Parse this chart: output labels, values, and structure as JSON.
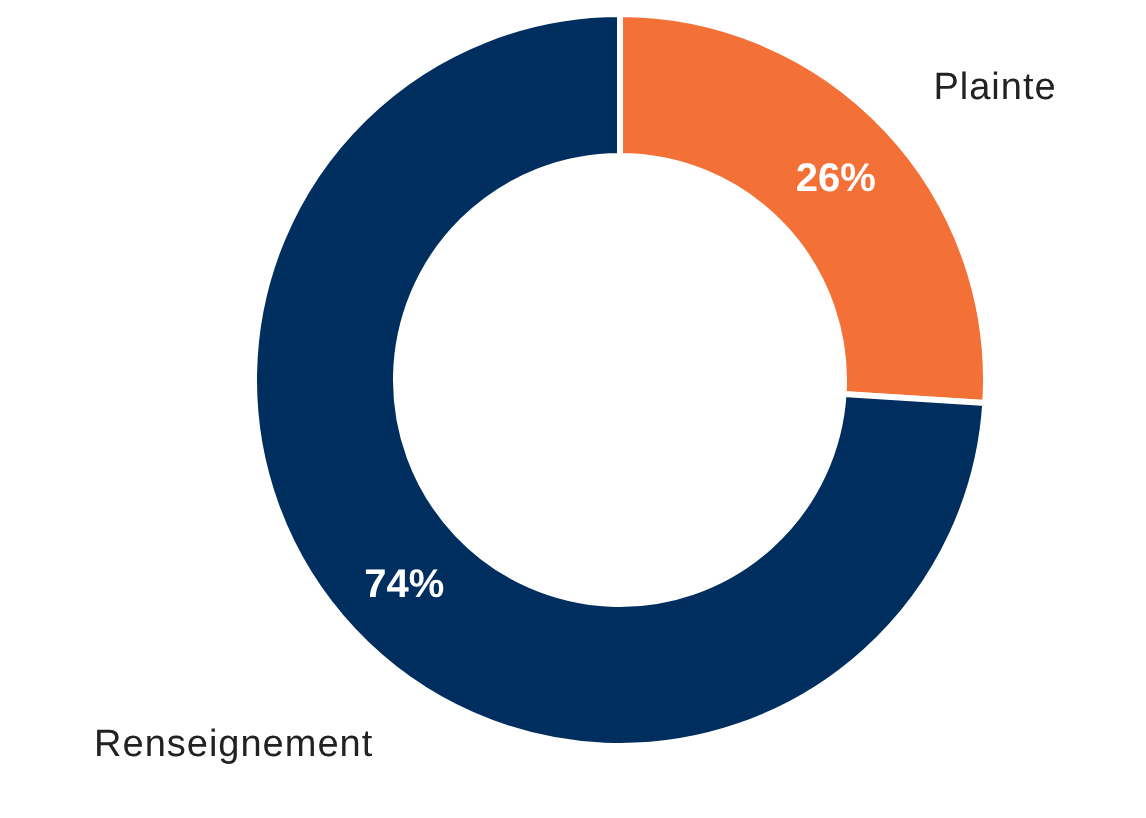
{
  "chart_data": {
    "type": "donut",
    "categories": [
      "Plainte",
      "Renseignement"
    ],
    "values": [
      26,
      74
    ],
    "colors": [
      "#f37036",
      "#002f5f"
    ],
    "value_labels": [
      "26%",
      "74%"
    ],
    "legend": false
  }
}
